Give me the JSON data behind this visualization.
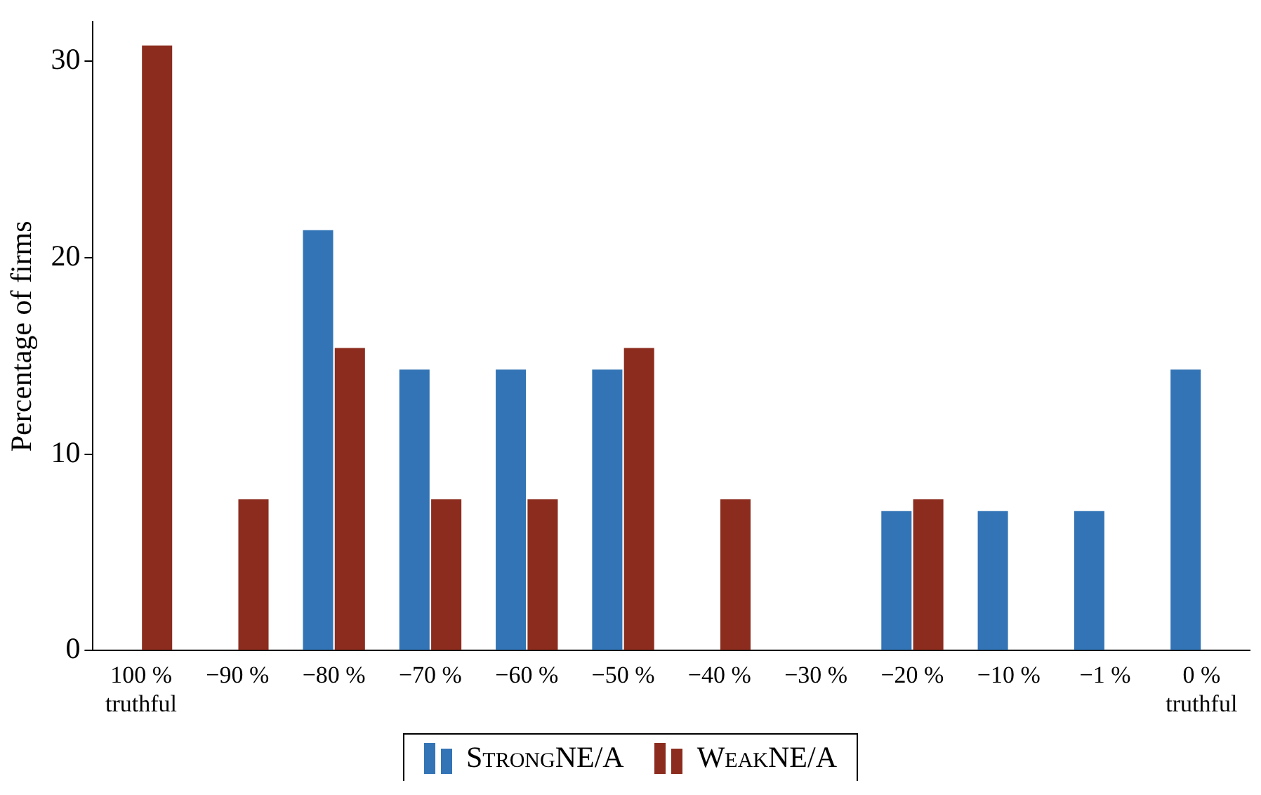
{
  "chart_data": {
    "type": "bar",
    "ylabel": "Percentage of firms",
    "categories": [
      "100 %\ntruthful",
      "−90 %",
      "−80 %",
      "−70 %",
      "−60 %",
      "−50 %",
      "−40 %",
      "−30 %",
      "−20 %",
      "−10 %",
      "−1 %",
      "0 %\ntruthful"
    ],
    "series": [
      {
        "name": "StrongNE/A",
        "color": "#3274b5",
        "values": [
          0,
          0,
          21.4,
          14.3,
          14.3,
          14.3,
          0,
          0,
          7.1,
          7.1,
          7.1,
          14.3
        ]
      },
      {
        "name": "WeakNE/A",
        "color": "#8b2c1e",
        "values": [
          30.8,
          7.7,
          15.4,
          7.7,
          7.7,
          15.4,
          7.7,
          0,
          7.7,
          0,
          0,
          0
        ]
      }
    ],
    "ylim": [
      0,
      32
    ],
    "yticks": [
      0,
      10,
      20,
      30
    ],
    "grid": false,
    "legend": "bottom"
  }
}
